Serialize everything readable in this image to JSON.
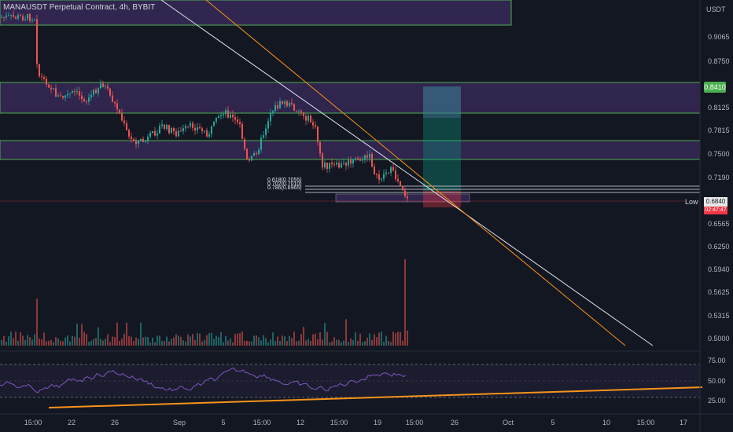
{
  "header": {
    "symbol": "MANAUSDT Perpetual Contract, 4h, BYBIT",
    "unit": "USDT"
  },
  "price_axis": {
    "labels": [
      "0.9065",
      "0.8750",
      "0.8125",
      "0.7815",
      "0.7500",
      "0.7190",
      "0.6565",
      "0.6250",
      "0.5940",
      "0.5625",
      "0.5315",
      "0.5000"
    ]
  },
  "rsi_axis": {
    "labels": [
      "75.00",
      "50.00",
      "25.00"
    ]
  },
  "time_axis": {
    "labels": [
      "15:00",
      "22",
      "26",
      "Sep",
      "5",
      "15:00",
      "12",
      "15:00",
      "19",
      "15:00",
      "26",
      "Oct",
      "5",
      "10",
      "15:00",
      "17"
    ]
  },
  "markers": {
    "current_price": "0.8410",
    "low_label": "Low",
    "low_value": "0.6840",
    "countdown": "02:47:47"
  },
  "fib_labels": [
    "0.618(0.7055)",
    "0.702(0.7010)",
    "0.786(0.6965)"
  ],
  "colors": {
    "background": "#131722",
    "zone": "#3c2c5f",
    "zone_border": "#4caf50",
    "up": "#26a69a",
    "down": "#ef5350",
    "trend_white": "#e0e3eb",
    "trend_orange": "#f7931a",
    "rsi": "#7e57c2"
  },
  "icons": [
    "price-tag-icon"
  ]
}
